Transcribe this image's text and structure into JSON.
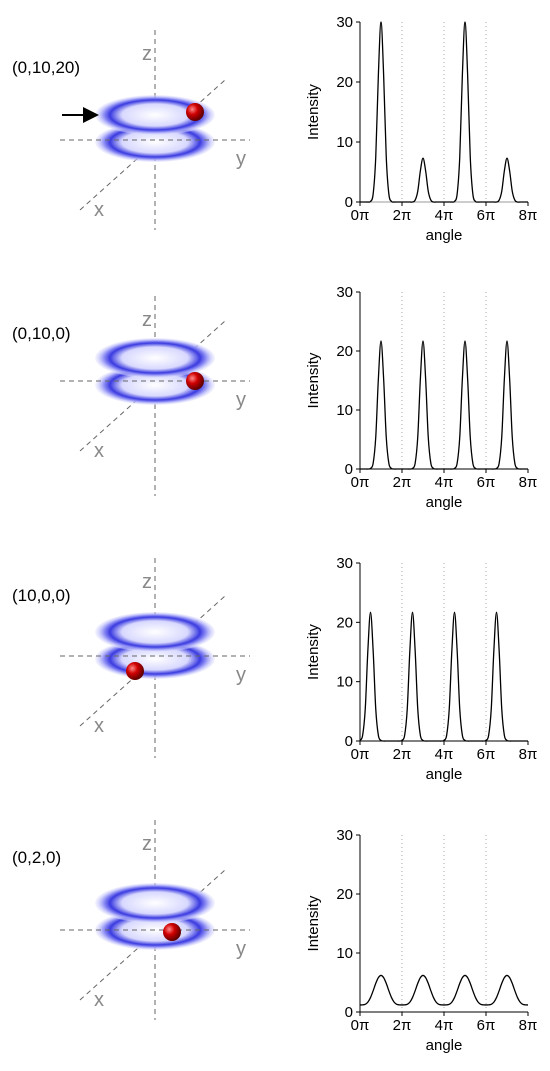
{
  "diagrams": [
    {
      "label": "(0,10,20)",
      "axes": [
        "z",
        "y",
        "x"
      ]
    },
    {
      "label": "(0,10,0)",
      "axes": [
        "z",
        "y",
        "x"
      ]
    },
    {
      "label": "(10,0,0)",
      "axes": [
        "z",
        "y",
        "x"
      ]
    },
    {
      "label": "(0,2,0)",
      "axes": [
        "z",
        "y",
        "x"
      ]
    }
  ],
  "chart_data": [
    {
      "type": "line",
      "xlabel": "angle",
      "ylabel": "Intensity",
      "x": [
        0,
        0.125,
        0.25,
        0.375,
        0.5,
        0.625,
        0.75,
        0.875,
        1,
        1.125,
        1.25,
        1.375,
        1.5,
        1.625,
        1.75,
        1.875,
        2,
        2.125,
        2.25,
        2.375,
        2.5,
        2.625,
        2.75,
        2.875,
        3,
        3.125,
        3.25,
        3.375,
        3.5,
        3.625,
        3.75,
        3.875,
        4,
        4.125,
        4.25,
        4.375,
        4.5,
        4.625,
        4.75,
        4.875,
        5,
        5.125,
        5.25,
        5.375,
        5.5,
        5.625,
        5.75,
        5.875,
        6,
        6.125,
        6.25,
        6.375,
        6.5,
        6.625,
        6.75,
        6.875,
        7,
        7.125,
        7.25,
        7.375,
        7.5,
        7.625,
        7.75,
        7.875,
        8
      ],
      "series": [
        {
          "color": "#000000",
          "values": [
            0,
            0,
            0,
            0,
            0.1,
            1.3,
            7.5,
            21.2,
            30,
            21.2,
            7.5,
            1.3,
            0.1,
            0,
            0,
            0,
            0,
            0,
            0,
            0,
            0,
            0.3,
            1.8,
            5.2,
            7.3,
            5.2,
            1.8,
            0.3,
            0,
            0,
            0,
            0,
            0,
            0,
            0,
            0,
            0.1,
            1.3,
            7.5,
            21.2,
            30,
            21.2,
            7.5,
            1.3,
            0.1,
            0,
            0,
            0,
            0,
            0,
            0,
            0,
            0,
            0.3,
            1.8,
            5.2,
            7.3,
            5.2,
            1.8,
            0.3,
            0,
            0,
            0,
            0,
            0
          ]
        }
      ],
      "xlim": [
        0,
        8
      ],
      "xticks": [
        {
          "value": 0,
          "label": "0π"
        },
        {
          "value": 2,
          "label": "2π"
        },
        {
          "value": 4,
          "label": "4π"
        },
        {
          "value": 6,
          "label": "6π"
        },
        {
          "value": 8,
          "label": "8π"
        }
      ],
      "ylim": [
        0,
        30
      ],
      "yticks": [
        0,
        10,
        20,
        30
      ],
      "grid": true
    },
    {
      "type": "line",
      "xlabel": "angle",
      "ylabel": "Intensity",
      "x": [
        0,
        0.125,
        0.25,
        0.375,
        0.5,
        0.625,
        0.75,
        0.875,
        1,
        1.125,
        1.25,
        1.375,
        1.5,
        1.625,
        1.75,
        1.875,
        2,
        2.125,
        2.25,
        2.375,
        2.5,
        2.625,
        2.75,
        2.875,
        3,
        3.125,
        3.25,
        3.375,
        3.5,
        3.625,
        3.75,
        3.875,
        4,
        4.125,
        4.25,
        4.375,
        4.5,
        4.625,
        4.75,
        4.875,
        5,
        5.125,
        5.25,
        5.375,
        5.5,
        5.625,
        5.75,
        5.875,
        6,
        6.125,
        6.25,
        6.375,
        6.5,
        6.625,
        6.75,
        6.875,
        7,
        7.125,
        7.25,
        7.375,
        7.5,
        7.625,
        7.75,
        7.875,
        8
      ],
      "series": [
        {
          "color": "#000000",
          "values": [
            0,
            0,
            0,
            0,
            0.1,
            0.95,
            5.4,
            15.3,
            21.7,
            15.3,
            5.4,
            0.95,
            0.1,
            0,
            0,
            0,
            0,
            0,
            0,
            0,
            0.1,
            0.95,
            5.4,
            15.3,
            21.7,
            15.3,
            5.4,
            0.95,
            0.1,
            0,
            0,
            0,
            0,
            0,
            0,
            0,
            0.1,
            0.95,
            5.4,
            15.3,
            21.7,
            15.3,
            5.4,
            0.95,
            0.1,
            0,
            0,
            0,
            0,
            0,
            0,
            0,
            0.1,
            0.95,
            5.4,
            15.3,
            21.7,
            15.3,
            5.4,
            0.95,
            0.1,
            0,
            0,
            0,
            0
          ]
        }
      ],
      "xlim": [
        0,
        8
      ],
      "xticks": [
        {
          "value": 0,
          "label": "0π"
        },
        {
          "value": 2,
          "label": "2π"
        },
        {
          "value": 4,
          "label": "4π"
        },
        {
          "value": 6,
          "label": "6π"
        },
        {
          "value": 8,
          "label": "8π"
        }
      ],
      "ylim": [
        0,
        30
      ],
      "yticks": [
        0,
        10,
        20,
        30
      ],
      "grid": true
    },
    {
      "type": "line",
      "xlabel": "angle",
      "ylabel": "Intensity",
      "x": [
        0,
        0.125,
        0.25,
        0.375,
        0.5,
        0.625,
        0.75,
        0.875,
        1,
        1.125,
        1.25,
        1.375,
        1.5,
        1.625,
        1.75,
        1.875,
        2,
        2.125,
        2.25,
        2.375,
        2.5,
        2.625,
        2.75,
        2.875,
        3,
        3.125,
        3.25,
        3.375,
        3.5,
        3.625,
        3.75,
        3.875,
        4,
        4.125,
        4.25,
        4.375,
        4.5,
        4.625,
        4.75,
        4.875,
        5,
        5.125,
        5.25,
        5.375,
        5.5,
        5.625,
        5.75,
        5.875,
        6,
        6.125,
        6.25,
        6.375,
        6.5,
        6.625,
        6.75,
        6.875,
        7,
        7.125,
        7.25,
        7.375,
        7.5,
        7.625,
        7.75,
        7.875,
        8
      ],
      "series": [
        {
          "color": "#000000",
          "values": [
            0.1,
            0.95,
            5.4,
            15.3,
            21.7,
            15.3,
            5.4,
            0.95,
            0.1,
            0,
            0,
            0,
            0,
            0,
            0,
            0,
            0.1,
            0.95,
            5.4,
            15.3,
            21.7,
            15.3,
            5.4,
            0.95,
            0.1,
            0,
            0,
            0,
            0,
            0,
            0,
            0,
            0.1,
            0.95,
            5.4,
            15.3,
            21.7,
            15.3,
            5.4,
            0.95,
            0.1,
            0,
            0,
            0,
            0,
            0,
            0,
            0,
            0.1,
            0.95,
            5.4,
            15.3,
            21.7,
            15.3,
            5.4,
            0.95,
            0.1,
            0,
            0,
            0,
            0,
            0,
            0,
            0,
            0
          ]
        }
      ],
      "xlim": [
        0,
        8
      ],
      "xticks": [
        {
          "value": 0,
          "label": "0π"
        },
        {
          "value": 2,
          "label": "2π"
        },
        {
          "value": 4,
          "label": "4π"
        },
        {
          "value": 6,
          "label": "6π"
        },
        {
          "value": 8,
          "label": "8π"
        }
      ],
      "ylim": [
        0,
        30
      ],
      "yticks": [
        0,
        10,
        20,
        30
      ],
      "grid": true
    },
    {
      "type": "line",
      "xlabel": "angle",
      "ylabel": "Intensity",
      "x": [
        0,
        0.125,
        0.25,
        0.375,
        0.5,
        0.625,
        0.75,
        0.875,
        1,
        1.125,
        1.25,
        1.375,
        1.5,
        1.625,
        1.75,
        1.875,
        2,
        2.125,
        2.25,
        2.375,
        2.5,
        2.625,
        2.75,
        2.875,
        3,
        3.125,
        3.25,
        3.375,
        3.5,
        3.625,
        3.75,
        3.875,
        4,
        4.125,
        4.25,
        4.375,
        4.5,
        4.625,
        4.75,
        4.875,
        5,
        5.125,
        5.25,
        5.375,
        5.5,
        5.625,
        5.75,
        5.875,
        6,
        6.125,
        6.25,
        6.375,
        6.5,
        6.625,
        6.75,
        6.875,
        7,
        7.125,
        7.25,
        7.375,
        7.5,
        7.625,
        7.75,
        7.875,
        8
      ],
      "series": [
        {
          "color": "#000000",
          "values": [
            1.2,
            1.21,
            1.31,
            1.68,
            2.45,
            3.59,
            4.85,
            5.83,
            6.2,
            5.83,
            4.85,
            3.59,
            2.45,
            1.68,
            1.31,
            1.21,
            1.2,
            1.21,
            1.31,
            1.68,
            2.45,
            3.59,
            4.85,
            5.83,
            6.2,
            5.83,
            4.85,
            3.59,
            2.45,
            1.68,
            1.31,
            1.21,
            1.2,
            1.21,
            1.31,
            1.68,
            2.45,
            3.59,
            4.85,
            5.83,
            6.2,
            5.83,
            4.85,
            3.59,
            2.45,
            1.68,
            1.31,
            1.21,
            1.2,
            1.21,
            1.31,
            1.68,
            2.45,
            3.59,
            4.85,
            5.83,
            6.2,
            5.83,
            4.85,
            3.59,
            2.45,
            1.68,
            1.31,
            1.21,
            1.2
          ]
        }
      ],
      "xlim": [
        0,
        8
      ],
      "xticks": [
        {
          "value": 0,
          "label": "0π"
        },
        {
          "value": 2,
          "label": "2π"
        },
        {
          "value": 4,
          "label": "4π"
        },
        {
          "value": 6,
          "label": "6π"
        },
        {
          "value": 8,
          "label": "8π"
        }
      ],
      "ylim": [
        0,
        30
      ],
      "yticks": [
        0,
        10,
        20,
        30
      ],
      "grid": true
    }
  ]
}
